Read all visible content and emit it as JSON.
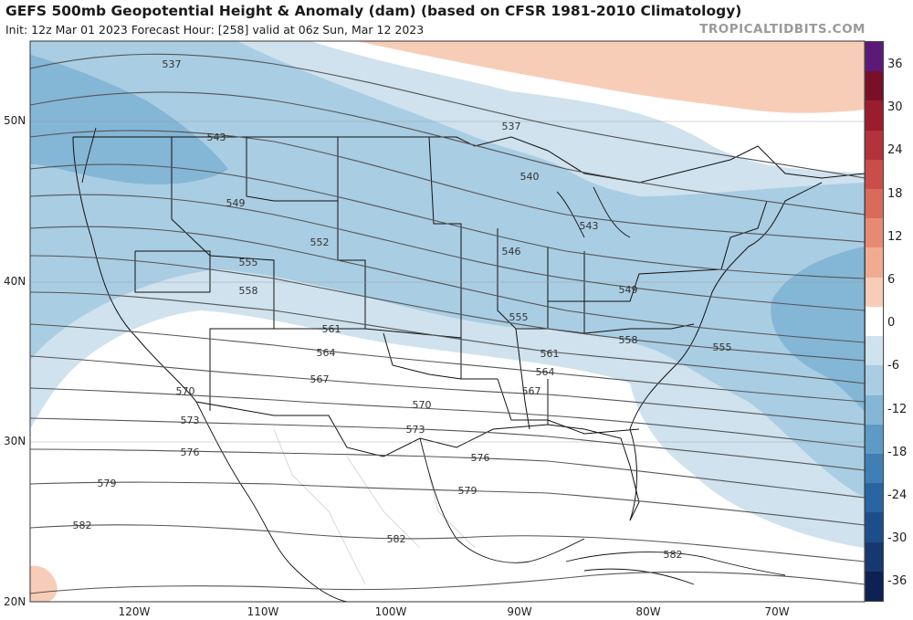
{
  "header": {
    "title": "GEFS 500mb Geopotential Height & Anomaly (dam) (based on CFSR 1981-2010 Climatology)",
    "subtitle": "Init: 12z Mar 01 2023   Forecast Hour: [258]   valid at 06z Sun, Mar 12 2023",
    "brand": "TROPICALTIDBITS.COM"
  },
  "colorbar": {
    "ticks": [
      "36",
      "30",
      "24",
      "18",
      "12",
      "6",
      "0",
      "-6",
      "-12",
      "-18",
      "-24",
      "-30",
      "-36"
    ],
    "colors": [
      "#5c1a78",
      "#7a0f2a",
      "#9b1c2c",
      "#b4323b",
      "#c94d49",
      "#d96b5b",
      "#e78a73",
      "#f1ab91",
      "#f8cdb7",
      "#ffffff",
      "#cfe2ee",
      "#a9cde3",
      "#84b6d6",
      "#5d9ac6",
      "#3e7fb6",
      "#2866a3",
      "#1d4e8c",
      "#17386f",
      "#0e2153"
    ]
  },
  "axes": {
    "lat_labels": [
      "50N",
      "40N",
      "30N",
      "20N"
    ],
    "lon_labels": [
      "120W",
      "110W",
      "100W",
      "90W",
      "80W",
      "70W"
    ]
  },
  "contours": [
    "537",
    "537",
    "540",
    "543",
    "543",
    "546",
    "549",
    "549",
    "552",
    "555",
    "555",
    "555",
    "558",
    "558",
    "561",
    "561",
    "564",
    "564",
    "567",
    "567",
    "570",
    "570",
    "573",
    "573",
    "576",
    "576",
    "579",
    "579",
    "582",
    "582",
    "582"
  ]
}
